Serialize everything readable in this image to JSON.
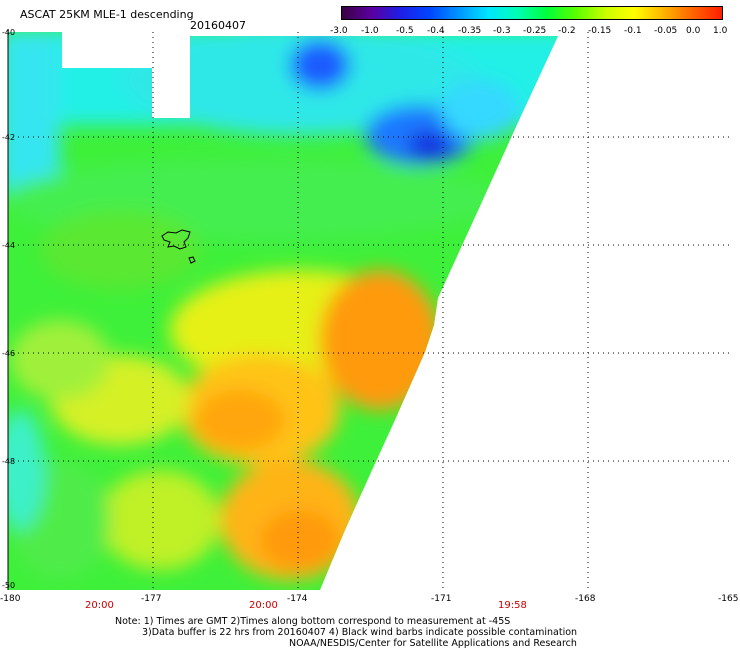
{
  "header": {
    "title": "ASCAT 25KM MLE-1 descending",
    "date": "20160407"
  },
  "colorbar": {
    "labels": [
      "-3.0",
      "-1.0",
      "-0.5",
      "-0.4",
      "-0.35",
      "-0.3",
      "-0.25",
      "-0.2",
      "-0.15",
      "-0.1",
      "-0.05",
      "0.0",
      "1.0"
    ],
    "colors": [
      "#3a0040",
      "#5a00a0",
      "#1e1ee6",
      "#0046ff",
      "#0096ff",
      "#00e6ff",
      "#00ffb4",
      "#00ff3c",
      "#5aff00",
      "#c8ff00",
      "#ffff00",
      "#ffb400",
      "#ff6400",
      "#ff1e00"
    ]
  },
  "axes": {
    "lat_labels": [
      "-40",
      "-42",
      "-44",
      "-46",
      "-48",
      "-50"
    ],
    "lon_labels": [
      "-180",
      "-177",
      "-174",
      "-171",
      "-168",
      "-165"
    ]
  },
  "times": [
    "20:00",
    "20:00",
    "19:58"
  ],
  "notes": {
    "line1": "Note: 1) Times are GMT 2)Times along bottom correspond to measurement at -45S",
    "line2": "3)Data buffer is 22 hrs from 20160407 4) Black wind barbs indicate possible contamination",
    "line3": "NOAA/NESDIS/Center for Satellite Applications and Research"
  },
  "map": {
    "features": [
      "chatham-islands-outline"
    ]
  }
}
